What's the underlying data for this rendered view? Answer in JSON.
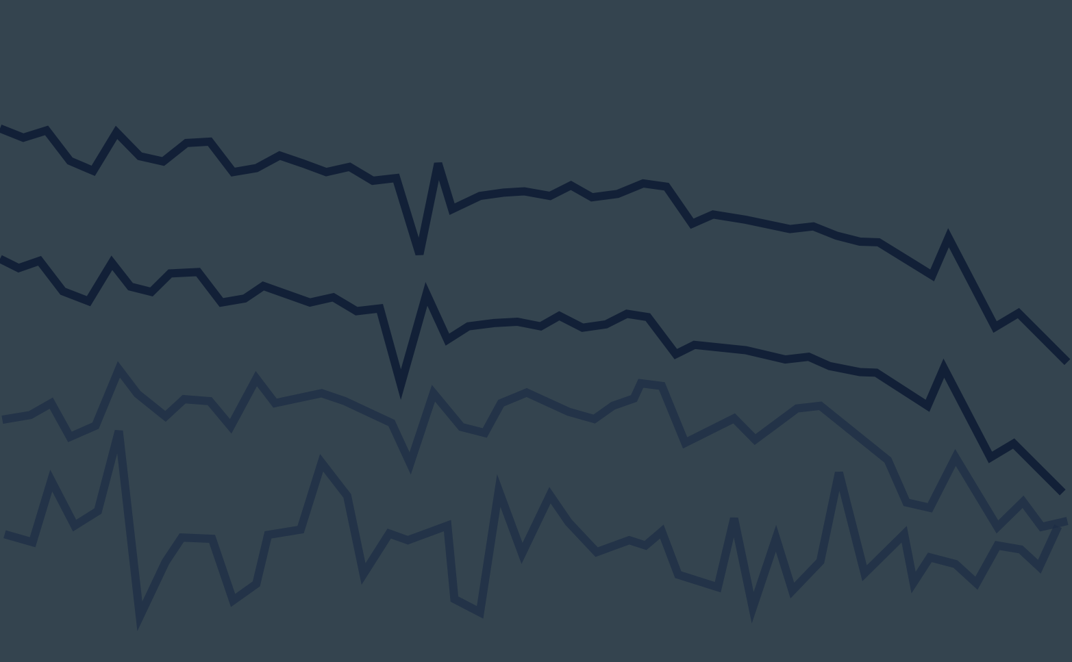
{
  "background_color": "#34444f",
  "chart_data": {
    "type": "line",
    "title": "",
    "xlabel": "",
    "ylabel": "",
    "grid": false,
    "legend": "none",
    "xlim": [
      0,
      46
    ],
    "ylim": [
      0,
      100
    ],
    "series": [
      {
        "color": "#111f36",
        "opacity": 0.95,
        "x": [
          0,
          1,
          2,
          3,
          4,
          5,
          6,
          7,
          8,
          9,
          10,
          11,
          12,
          13,
          14,
          15,
          16,
          17,
          18,
          18.8,
          19.4,
          20.6,
          21.6,
          22.5,
          23.6,
          24.5,
          25.4,
          26.5,
          27.6,
          28.6,
          29.7,
          30.6,
          32.0,
          33.9,
          34.9,
          35.9,
          36.9,
          37.7,
          40.0,
          40.7,
          42.7,
          43.7,
          45.8
        ],
        "y": [
          80.6,
          79.2,
          80.3,
          75.7,
          74.2,
          80.0,
          76.4,
          75.6,
          78.4,
          78.6,
          74.0,
          74.6,
          76.5,
          75.3,
          74.0,
          74.8,
          72.7,
          73.1,
          61.6,
          75.3,
          68.4,
          70.4,
          70.9,
          71.1,
          70.4,
          72.0,
          70.2,
          70.7,
          72.3,
          71.8,
          66.2,
          67.6,
          66.8,
          65.4,
          65.8,
          64.4,
          63.5,
          63.4,
          58.4,
          64.1,
          50.6,
          52.7,
          45.3
        ]
      },
      {
        "color": "#111f36",
        "opacity": 0.95,
        "x": [
          0,
          0.8,
          1.7,
          2.7,
          3.8,
          4.8,
          5.6,
          6.5,
          7.3,
          8.5,
          9.5,
          10.5,
          11.3,
          13.3,
          14.3,
          15.3,
          16.3,
          17.2,
          18.3,
          19.2,
          20.1,
          21.2,
          22.2,
          23.2,
          24.0,
          25.0,
          26.0,
          26.9,
          27.8,
          29.0,
          29.8,
          32.0,
          33.7,
          34.7,
          35.6,
          36.9,
          37.6,
          39.8,
          40.5,
          42.5,
          43.5,
          45.6
        ],
        "y": [
          60.9,
          59.5,
          60.6,
          56.0,
          54.5,
          60.3,
          56.7,
          55.9,
          58.7,
          58.9,
          54.3,
          54.9,
          56.8,
          54.3,
          55.1,
          53.0,
          53.4,
          41.9,
          55.6,
          48.7,
          50.7,
          51.2,
          51.4,
          50.7,
          52.3,
          50.5,
          51.0,
          52.6,
          52.1,
          46.5,
          47.9,
          47.1,
          45.7,
          46.1,
          44.7,
          43.8,
          43.7,
          38.7,
          44.4,
          30.9,
          33.0,
          25.6
        ]
      },
      {
        "color": "#1e2d46",
        "opacity": 0.75,
        "x": [
          0.1,
          1.3,
          2.2,
          3.0,
          4.1,
          5.1,
          5.9,
          7.1,
          7.9,
          9.0,
          9.9,
          11.0,
          11.8,
          13.8,
          14.8,
          16.8,
          17.6,
          18.6,
          19.8,
          20.8,
          21.5,
          22.6,
          24.4,
          25.5,
          26.3,
          27.2,
          27.5,
          28.4,
          29.4,
          31.5,
          32.4,
          34.2,
          35.2,
          38.1,
          38.9,
          39.9,
          41.0,
          42.8,
          43.9,
          44.7,
          45.8
        ],
        "y": [
          36.6,
          37.3,
          39.1,
          34.0,
          35.7,
          44.2,
          40.5,
          37.1,
          39.7,
          39.4,
          35.6,
          42.8,
          39.1,
          40.6,
          39.4,
          36.1,
          30.0,
          40.6,
          35.5,
          34.6,
          39.1,
          40.7,
          37.8,
          36.7,
          38.7,
          39.8,
          42.1,
          41.7,
          33.1,
          36.8,
          33.6,
          38.3,
          38.7,
          30.5,
          24.1,
          23.3,
          30.9,
          20.4,
          24.2,
          20.4,
          21.3
        ]
      },
      {
        "color": "#1e2d46",
        "opacity": 0.75,
        "x": [
          0.2,
          1.4,
          2.2,
          3.2,
          4.2,
          5.1,
          6.0,
          7.1,
          7.8,
          9.1,
          10.0,
          11.0,
          11.5,
          12.9,
          13.8,
          14.9,
          15.6,
          16.7,
          17.5,
          19.2,
          19.5,
          20.6,
          21.4,
          22.4,
          23.6,
          24.4,
          25.6,
          27.0,
          27.7,
          28.4,
          29.1,
          30.8,
          31.5,
          32.3,
          33.3,
          34.0,
          35.2,
          36.0,
          37.1,
          38.8,
          39.2,
          39.9,
          41.0,
          41.9,
          42.8,
          43.8,
          44.6,
          45.4
        ],
        "y": [
          19.3,
          18.1,
          27.4,
          20.6,
          22.8,
          34.9,
          6.9,
          15.1,
          18.8,
          18.6,
          9.3,
          11.8,
          19.2,
          20.0,
          30.1,
          25.1,
          13.3,
          19.4,
          18.4,
          20.6,
          9.5,
          7.5,
          25.9,
          16.4,
          25.2,
          21.1,
          16.6,
          18.4,
          17.6,
          19.7,
          13.2,
          11.3,
          21.7,
          8.2,
          18.7,
          10.8,
          15.2,
          28.6,
          13.4,
          19.3,
          12.0,
          15.8,
          14.8,
          11.9,
          17.6,
          17.0,
          14.4,
          20.5
        ]
      }
    ]
  }
}
